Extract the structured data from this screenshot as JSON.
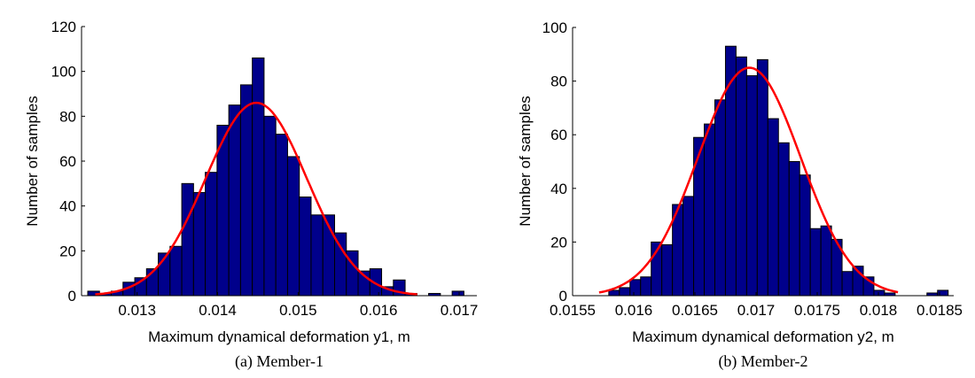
{
  "chart_data": [
    {
      "type": "bar",
      "subtype": "histogram-with-fit",
      "caption": "(a) Member-1",
      "xlabel": "Maximum dynamical deformation y1, m",
      "ylabel": "Number of samples",
      "xlim": [
        0.01231,
        0.01722
      ],
      "ylim": [
        0,
        120
      ],
      "xticks": [
        0.013,
        0.014,
        0.015,
        0.016,
        0.017
      ],
      "xtick_labels": [
        "0.013",
        "0.014",
        "0.015",
        "0.016",
        "0.017"
      ],
      "yticks": [
        0,
        20,
        40,
        60,
        80,
        100,
        120
      ],
      "ytick_labels": [
        "0",
        "20",
        "40",
        "60",
        "80",
        "100",
        "120"
      ],
      "bin_start": 0.012387,
      "bin_width": 0.000146,
      "counts": [
        2,
        1,
        2,
        6,
        8,
        12,
        19,
        22,
        50,
        46,
        55,
        76,
        85,
        94,
        106,
        80,
        72,
        62,
        44,
        36,
        36,
        28,
        20,
        11,
        12,
        4,
        7,
        1,
        0,
        1,
        0,
        2
      ],
      "bar_color": "#00008B",
      "fit": {
        "type": "normal",
        "mean": 0.01448,
        "sd": 0.00063,
        "peak": 86,
        "x_range": [
          0.01248,
          0.01648
        ],
        "color": "#FF0000"
      }
    },
    {
      "type": "bar",
      "subtype": "histogram-with-fit",
      "caption": "(b) Member-2",
      "xlabel": "Maximum dynamical deformation y2, m",
      "ylabel": "Number of samples",
      "xlim": [
        0.0155,
        0.018616
      ],
      "ylim": [
        0,
        100
      ],
      "xticks": [
        0.0155,
        0.016,
        0.0165,
        0.017,
        0.0175,
        0.018,
        0.0185
      ],
      "xtick_labels": [
        "0.0155",
        "0.016",
        "0.0165",
        "0.017",
        "0.0175",
        "0.018",
        "0.0185"
      ],
      "yticks": [
        0,
        20,
        40,
        60,
        80,
        100
      ],
      "ytick_labels": [
        "0",
        "20",
        "40",
        "60",
        "80",
        "100"
      ],
      "bin_start": 0.015796,
      "bin_width": 8.67e-05,
      "counts": [
        2,
        3,
        6,
        7,
        20,
        19,
        34,
        37,
        59,
        64,
        73,
        93,
        89,
        82,
        88,
        66,
        57,
        50,
        45,
        25,
        26,
        21,
        9,
        11,
        7,
        2,
        1,
        0,
        0,
        0,
        1,
        2
      ],
      "bar_color": "#00008B",
      "fit": {
        "type": "normal",
        "mean": 0.016945,
        "sd": 0.00042,
        "peak": 85,
        "x_range": [
          0.015717,
          0.01816
        ],
        "color": "#FF0000"
      }
    }
  ]
}
